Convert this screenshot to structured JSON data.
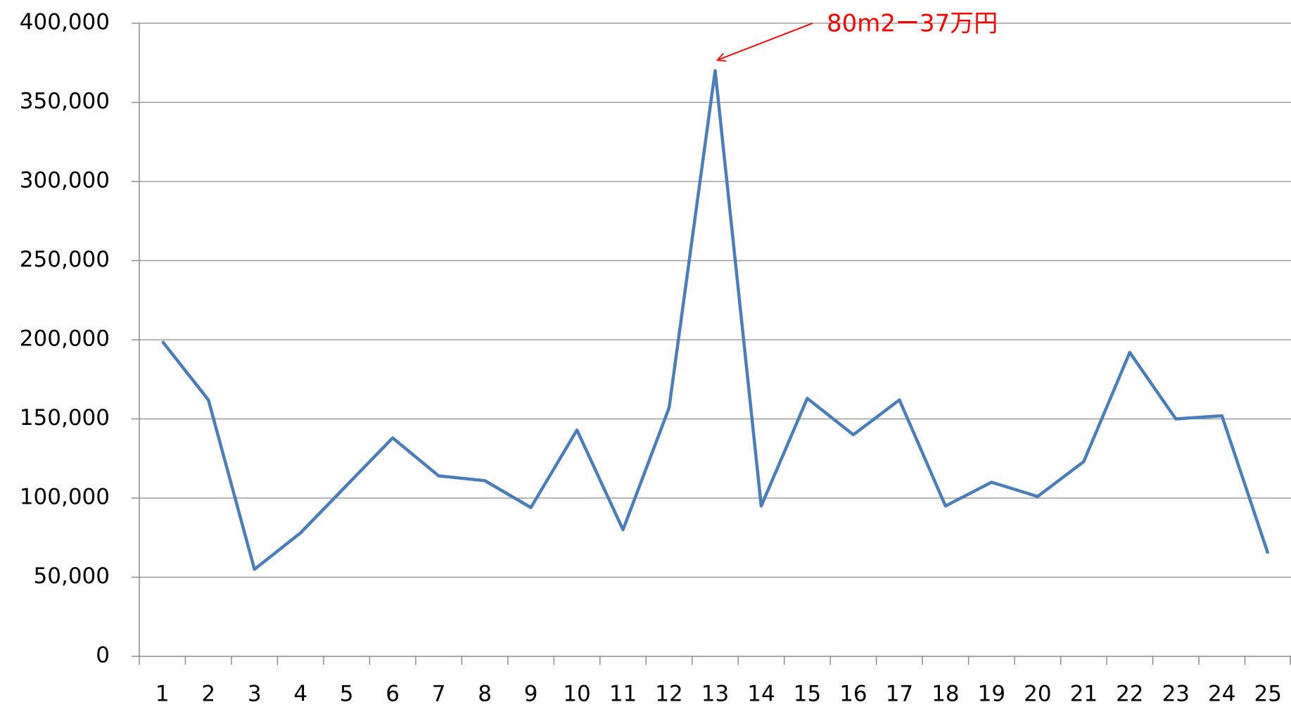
{
  "chart_data": {
    "type": "line",
    "annotation": "80m2ー37万円",
    "categories": [
      "1",
      "2",
      "3",
      "4",
      "5",
      "6",
      "7",
      "8",
      "9",
      "10",
      "11",
      "12",
      "13",
      "14",
      "15",
      "16",
      "17",
      "18",
      "19",
      "20",
      "21",
      "22",
      "23",
      "24",
      "25"
    ],
    "series": [
      {
        "color": "#4a7ebb",
        "values": [
          199000,
          162000,
          55000,
          78000,
          108000,
          138000,
          114000,
          111000,
          94000,
          143000,
          80000,
          157000,
          370000,
          95000,
          163000,
          140000,
          162000,
          95000,
          110000,
          101000,
          123000,
          192000,
          150000,
          152000,
          65000
        ]
      }
    ],
    "ylim": [
      0,
      400000
    ],
    "yticks": [
      0,
      {
        "value": 50000,
        "label": "50,000"
      },
      {
        "value": 100000,
        "label": "100,000"
      },
      {
        "value": 150000,
        "label": "150,000"
      },
      {
        "value": 200000,
        "label": "200,000"
      },
      {
        "value": 250000,
        "label": "250,000"
      },
      {
        "value": 300000,
        "label": "300,000"
      },
      {
        "value": 350000,
        "label": "350,000"
      },
      {
        "value": 400000,
        "label": "400,000"
      }
    ],
    "grid": true,
    "annotation_color": "#ff0000"
  }
}
